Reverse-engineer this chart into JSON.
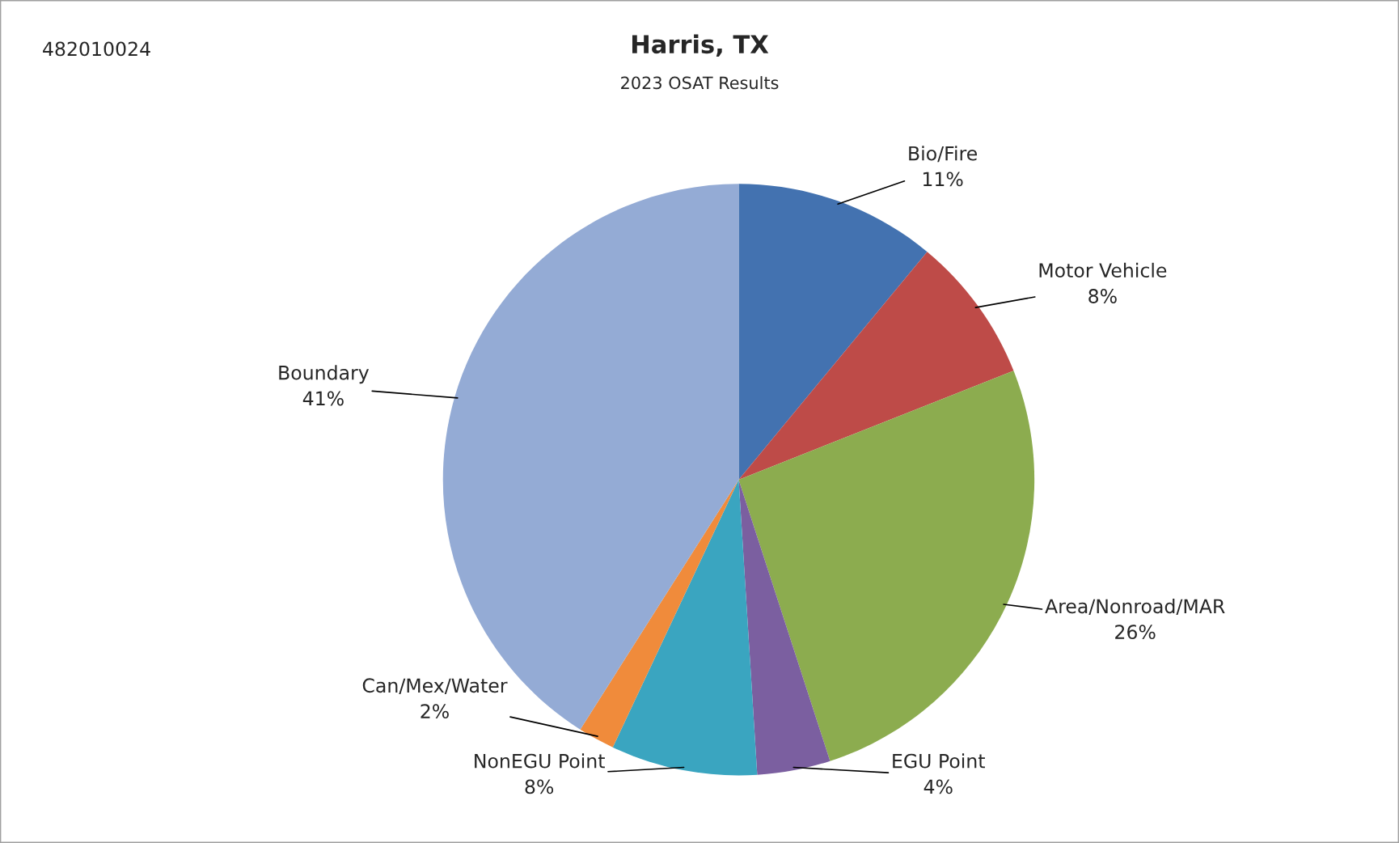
{
  "chart_data": {
    "type": "pie",
    "title": "Harris, TX",
    "subtitle": "2023 OSAT Results",
    "annotations": [
      "482010024"
    ],
    "categories": [
      "Bio/Fire",
      "Motor Vehicle",
      "Area/Nonroad/MAR",
      "EGU Point",
      "NonEGU Point",
      "Can/Mex/Water",
      "Boundary"
    ],
    "values": [
      11,
      8,
      26,
      4,
      8,
      2,
      41
    ],
    "value_labels": [
      "11%",
      "8%",
      "26%",
      "4%",
      "8%",
      "2%",
      "41%"
    ],
    "colors": [
      "#4372b0",
      "#be4b48",
      "#8cac4f",
      "#7b5fa0",
      "#3aa5c0",
      "#f08b3b",
      "#94abd5"
    ],
    "legend": false
  }
}
